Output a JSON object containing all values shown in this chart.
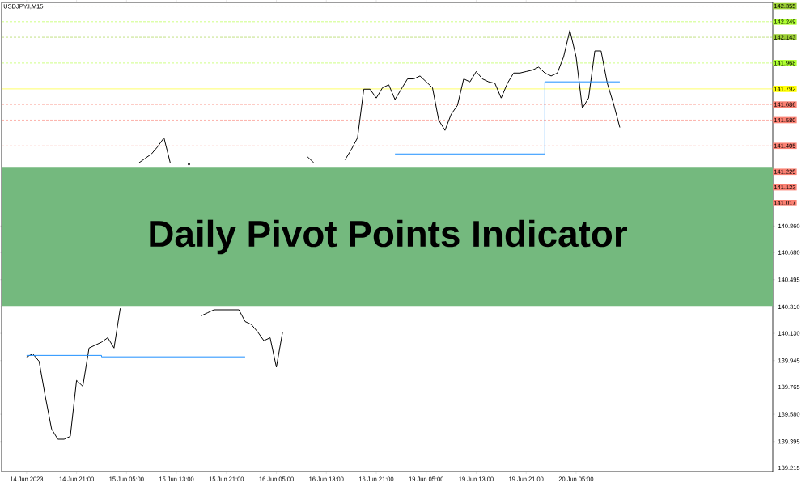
{
  "chart_data": {
    "type": "line",
    "title": "Daily Pivot Points Indicator",
    "subtitle": "USDJPY.I,M15",
    "categories": [
      "14 Jun 2023",
      null,
      null,
      null,
      null,
      null,
      null,
      null,
      "14 Jun 21:00",
      null,
      null,
      null,
      null,
      null,
      null,
      null,
      "15 Jun 05:00",
      null,
      null,
      null,
      null,
      null,
      null,
      null,
      "15 Jun 13:00",
      null,
      null,
      null,
      null,
      null,
      null,
      null,
      "15 Jun 21:00",
      null,
      null,
      null,
      null,
      null,
      null,
      null,
      "16 Jun 05:00",
      null,
      null,
      null,
      null,
      null,
      null,
      null,
      "16 Jun 13:00",
      null,
      null,
      null,
      null,
      null,
      null,
      null,
      "16 Jun 21:00",
      null,
      null,
      null,
      null,
      null,
      null,
      null,
      "19 Jun 05:00",
      null,
      null,
      null,
      null,
      null,
      null,
      null,
      "19 Jun 13:00",
      null,
      null,
      null,
      null,
      null,
      null,
      null,
      "19 Jun 21:00",
      null,
      null,
      null,
      null,
      null,
      null,
      null,
      "20 Jun 05:00",
      null,
      null,
      null,
      null,
      null,
      null,
      null,
      null,
      null,
      null,
      null,
      null,
      null,
      null,
      null,
      null,
      null,
      null,
      null,
      null,
      null,
      null,
      null,
      null,
      null,
      null,
      null,
      null,
      null,
      null,
      null
    ],
    "ylim": [
      139.19,
      142.38
    ],
    "yticks": [
      {
        "value": 139.215,
        "label": "139.215"
      },
      {
        "value": 139.395,
        "label": "139.395"
      },
      {
        "value": 139.58,
        "label": "139.580"
      },
      {
        "value": 139.765,
        "label": "139.765"
      },
      {
        "value": 139.945,
        "label": "139.945"
      },
      {
        "value": 140.13,
        "label": "140.130"
      },
      {
        "value": 140.31,
        "label": "140.310"
      },
      {
        "value": 140.495,
        "label": "140.495"
      },
      {
        "value": 140.68,
        "label": "140.680"
      },
      {
        "value": 140.86,
        "label": "140.860"
      }
    ],
    "series": [
      {
        "color": "#000000",
        "values": [
          139.97,
          139.99,
          139.94,
          139.7,
          139.48,
          139.41,
          139.41,
          139.43,
          139.81,
          139.77,
          140.03,
          140.05,
          140.07,
          140.1,
          140.03,
          140.3,
          null,
          null,
          141.29,
          141.32,
          141.35,
          141.4,
          141.46,
          141.29,
          null,
          null,
          141.28,
          null,
          140.25,
          140.27,
          140.29,
          140.29,
          140.29,
          140.29,
          140.29,
          140.21,
          140.19,
          140.14,
          140.08,
          140.1,
          139.9,
          140.14,
          null,
          null,
          null,
          141.33,
          141.29,
          null,
          null,
          null,
          null,
          141.31,
          141.38,
          141.46,
          141.79,
          141.79,
          141.73,
          141.8,
          141.82,
          141.72,
          141.79,
          141.86,
          141.86,
          141.88,
          141.84,
          141.8,
          141.58,
          141.51,
          141.62,
          141.68,
          141.86,
          141.84,
          141.91,
          141.86,
          141.84,
          141.83,
          141.73,
          141.83,
          141.9,
          141.9,
          141.91,
          141.92,
          141.94,
          141.9,
          141.88,
          141.9,
          142.01,
          142.19,
          142.01,
          141.66,
          141.73,
          142.05,
          142.05,
          141.83,
          141.69,
          141.53,
          null,
          null,
          null,
          null,
          null,
          null,
          null,
          null,
          null,
          null,
          null,
          null,
          null,
          null,
          null,
          null,
          null,
          null,
          null,
          null,
          null,
          null,
          null,
          null
        ]
      },
      {
        "type": "step",
        "color": "#1e90ff",
        "values": [
          139.98,
          139.98,
          139.98,
          139.98,
          139.98,
          139.98,
          139.98,
          139.98,
          139.98,
          139.98,
          139.98,
          139.98,
          139.97,
          139.97,
          139.97,
          139.97,
          139.97,
          139.97,
          139.97,
          139.97,
          139.97,
          139.97,
          139.97,
          139.97,
          139.97,
          139.97,
          139.97,
          139.97,
          139.97,
          139.97,
          139.97,
          139.97,
          139.97,
          139.97,
          139.97,
          139.97,
          null,
          null,
          null,
          null,
          null,
          null,
          null,
          null,
          null,
          null,
          null,
          null,
          null,
          null,
          null,
          null,
          null,
          null,
          null,
          null,
          null,
          null,
          null,
          141.35,
          141.35,
          141.35,
          141.35,
          141.35,
          141.35,
          141.35,
          141.35,
          141.35,
          141.35,
          141.35,
          141.35,
          141.35,
          141.35,
          141.35,
          141.35,
          141.35,
          141.35,
          141.35,
          141.35,
          141.35,
          141.35,
          141.35,
          141.35,
          141.84,
          141.84,
          141.84,
          141.84,
          141.84,
          141.84,
          141.84,
          141.84,
          141.84,
          141.84,
          141.84,
          141.84,
          141.84,
          null,
          null,
          null,
          null,
          null,
          null,
          null,
          null,
          null,
          null,
          null,
          null,
          null,
          null,
          null,
          null,
          null,
          null,
          null,
          null,
          null,
          null,
          null,
          null
        ]
      }
    ],
    "ref_lines": [
      {
        "axis": "y",
        "value": 142.355,
        "label": "142.355",
        "color": "#9acd32",
        "line_style": "dashed"
      },
      {
        "axis": "y",
        "value": 142.249,
        "label": "142.249",
        "color": "#adff2f",
        "line_style": "dashed"
      },
      {
        "axis": "y",
        "value": 142.143,
        "label": "142.143",
        "color": "#9acd32",
        "line_style": "dashed"
      },
      {
        "axis": "y",
        "value": 141.968,
        "label": "141.968",
        "color": "#adff2f",
        "line_style": "dashed"
      },
      {
        "axis": "y",
        "value": 141.792,
        "label": "141.792",
        "color": "#ffff00",
        "line_style": "solid"
      },
      {
        "axis": "y",
        "value": 141.686,
        "label": "141.686",
        "color": "#fa8072",
        "line_style": "dashed"
      },
      {
        "axis": "y",
        "value": 141.58,
        "label": "141.580",
        "color": "#fa8072",
        "line_style": "dashed"
      },
      {
        "axis": "y",
        "value": 141.405,
        "label": "141.405",
        "color": "#fa8072",
        "line_style": "dashed"
      },
      {
        "axis": "y",
        "value": 141.229,
        "label": "141.229",
        "color": "#fa8072",
        "line_style": "dashed"
      },
      {
        "axis": "y",
        "value": 141.123,
        "label": "141.123",
        "color": "#fa8072",
        "line_style": "dashed"
      },
      {
        "axis": "y",
        "value": 141.017,
        "label": "141.017",
        "color": "#fa8072",
        "line_style": "dashed"
      }
    ]
  }
}
